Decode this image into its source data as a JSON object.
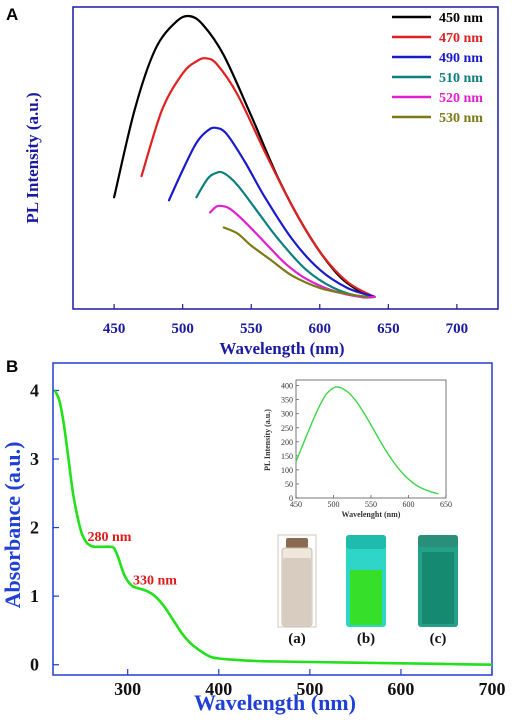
{
  "panel_a": {
    "letter": "A",
    "colors": {
      "axes": "#1a1aa0"
    },
    "chart_data": {
      "type": "line",
      "xlabel": "Wavelength (nm)",
      "ylabel": "PL Intensity (a.u.)",
      "xlim": [
        420,
        730
      ],
      "ylim": [
        0,
        1.0
      ],
      "xticks": [
        450,
        500,
        550,
        600,
        650,
        700
      ],
      "y_tick_labels_shown": false,
      "legend_position": "top-right",
      "series": [
        {
          "name": "450 nm",
          "color": "#000000",
          "x": [
            450,
            465,
            480,
            495,
            505,
            515,
            530,
            550,
            570,
            590,
            610,
            625,
            640
          ],
          "y": [
            0.37,
            0.66,
            0.86,
            0.95,
            0.97,
            0.94,
            0.84,
            0.64,
            0.43,
            0.26,
            0.13,
            0.07,
            0.04
          ]
        },
        {
          "name": "470 nm",
          "color": "#e02020",
          "x": [
            470,
            485,
            500,
            510,
            517,
            525,
            540,
            560,
            580,
            600,
            620,
            640
          ],
          "y": [
            0.44,
            0.66,
            0.78,
            0.82,
            0.83,
            0.81,
            0.71,
            0.52,
            0.34,
            0.19,
            0.09,
            0.04
          ]
        },
        {
          "name": "490 nm",
          "color": "#1a1acc",
          "x": [
            490,
            500,
            510,
            518,
            524,
            532,
            545,
            560,
            580,
            600,
            620,
            640
          ],
          "y": [
            0.36,
            0.46,
            0.55,
            0.59,
            0.6,
            0.58,
            0.49,
            0.37,
            0.23,
            0.13,
            0.07,
            0.04
          ]
        },
        {
          "name": "510 nm",
          "color": "#0b7f7f",
          "x": [
            510,
            518,
            524,
            530,
            540,
            555,
            570,
            590,
            610,
            630,
            640
          ],
          "y": [
            0.37,
            0.43,
            0.45,
            0.45,
            0.41,
            0.32,
            0.23,
            0.13,
            0.07,
            0.04,
            0.04
          ]
        },
        {
          "name": "520 nm",
          "color": "#e020d0",
          "x": [
            520,
            525,
            530,
            535,
            545,
            560,
            575,
            590,
            610,
            630,
            640
          ],
          "y": [
            0.32,
            0.34,
            0.34,
            0.33,
            0.29,
            0.22,
            0.15,
            0.1,
            0.06,
            0.04,
            0.04
          ]
        },
        {
          "name": "530 nm",
          "color": "#7a7a14",
          "x": [
            530,
            540,
            550,
            565,
            580,
            600,
            620,
            635
          ],
          "y": [
            0.27,
            0.25,
            0.21,
            0.16,
            0.11,
            0.07,
            0.05,
            0.04
          ]
        }
      ]
    }
  },
  "panel_b": {
    "letter": "B",
    "colors": {
      "axes": "#1f3fd6",
      "curve": "#22e01a",
      "annotations": "#e01a1a"
    },
    "chart_data": {
      "type": "line",
      "xlabel": "Wavelength (nm)",
      "ylabel": "Absorbance (a.u.)",
      "xlim": [
        218,
        700
      ],
      "ylim": [
        -0.15,
        4.4
      ],
      "xticks": [
        300,
        400,
        500,
        600,
        700
      ],
      "yticks": [
        0,
        1,
        2,
        3,
        4
      ],
      "series": [
        {
          "name": "",
          "color": "#22e01a",
          "x": [
            220,
            225,
            230,
            235,
            240,
            245,
            250,
            255,
            260,
            265,
            270,
            275,
            280,
            285,
            290,
            295,
            300,
            305,
            310,
            320,
            330,
            340,
            350,
            360,
            370,
            380,
            390,
            400,
            420,
            450,
            500,
            550,
            600,
            650,
            700
          ],
          "y": [
            4.0,
            3.85,
            3.5,
            3.0,
            2.5,
            2.15,
            1.9,
            1.78,
            1.73,
            1.72,
            1.72,
            1.72,
            1.72,
            1.7,
            1.55,
            1.35,
            1.22,
            1.15,
            1.12,
            1.08,
            1.0,
            0.85,
            0.65,
            0.45,
            0.3,
            0.2,
            0.12,
            0.09,
            0.07,
            0.05,
            0.04,
            0.03,
            0.02,
            0.01,
            0.0
          ]
        }
      ],
      "annotations": [
        {
          "text": "280 nm",
          "x": 280,
          "y": 1.72
        },
        {
          "text": "330 nm",
          "x": 330,
          "y": 1.08
        }
      ]
    },
    "inset": {
      "chart_data": {
        "type": "line",
        "xlabel": "Wavelenght (nm)",
        "ylabel": "PL Intensity (a.u.)",
        "xlim": [
          450,
          650
        ],
        "ylim": [
          0,
          420
        ],
        "xticks": [
          450,
          500,
          550,
          600,
          650
        ],
        "yticks": [
          0,
          50,
          100,
          150,
          200,
          250,
          300,
          350,
          400
        ],
        "series": [
          {
            "name": "",
            "color": "#3fd64a",
            "x": [
              450,
              460,
              470,
              480,
              490,
              500,
              505,
              510,
              520,
              530,
              540,
              550,
              560,
              570,
              580,
              590,
              600,
              610,
              620,
              630,
              640
            ],
            "y": [
              130,
              195,
              260,
              320,
              368,
              392,
              395,
              392,
              375,
              345,
              305,
              260,
              213,
              168,
              128,
              94,
              67,
              46,
              32,
              22,
              15
            ]
          }
        ]
      }
    },
    "vials": [
      {
        "label": "(a)",
        "liquid": "#d8cbbf",
        "glass": "#efe6dc",
        "cap": "#8a6a50"
      },
      {
        "label": "(b)",
        "liquid": "#36e02a",
        "glass": "#2fd6c8",
        "cap": "#1fbcae"
      },
      {
        "label": "(c)",
        "liquid": "#168a70",
        "glass": "#25a088",
        "cap": "#2a8f7a"
      }
    ]
  }
}
